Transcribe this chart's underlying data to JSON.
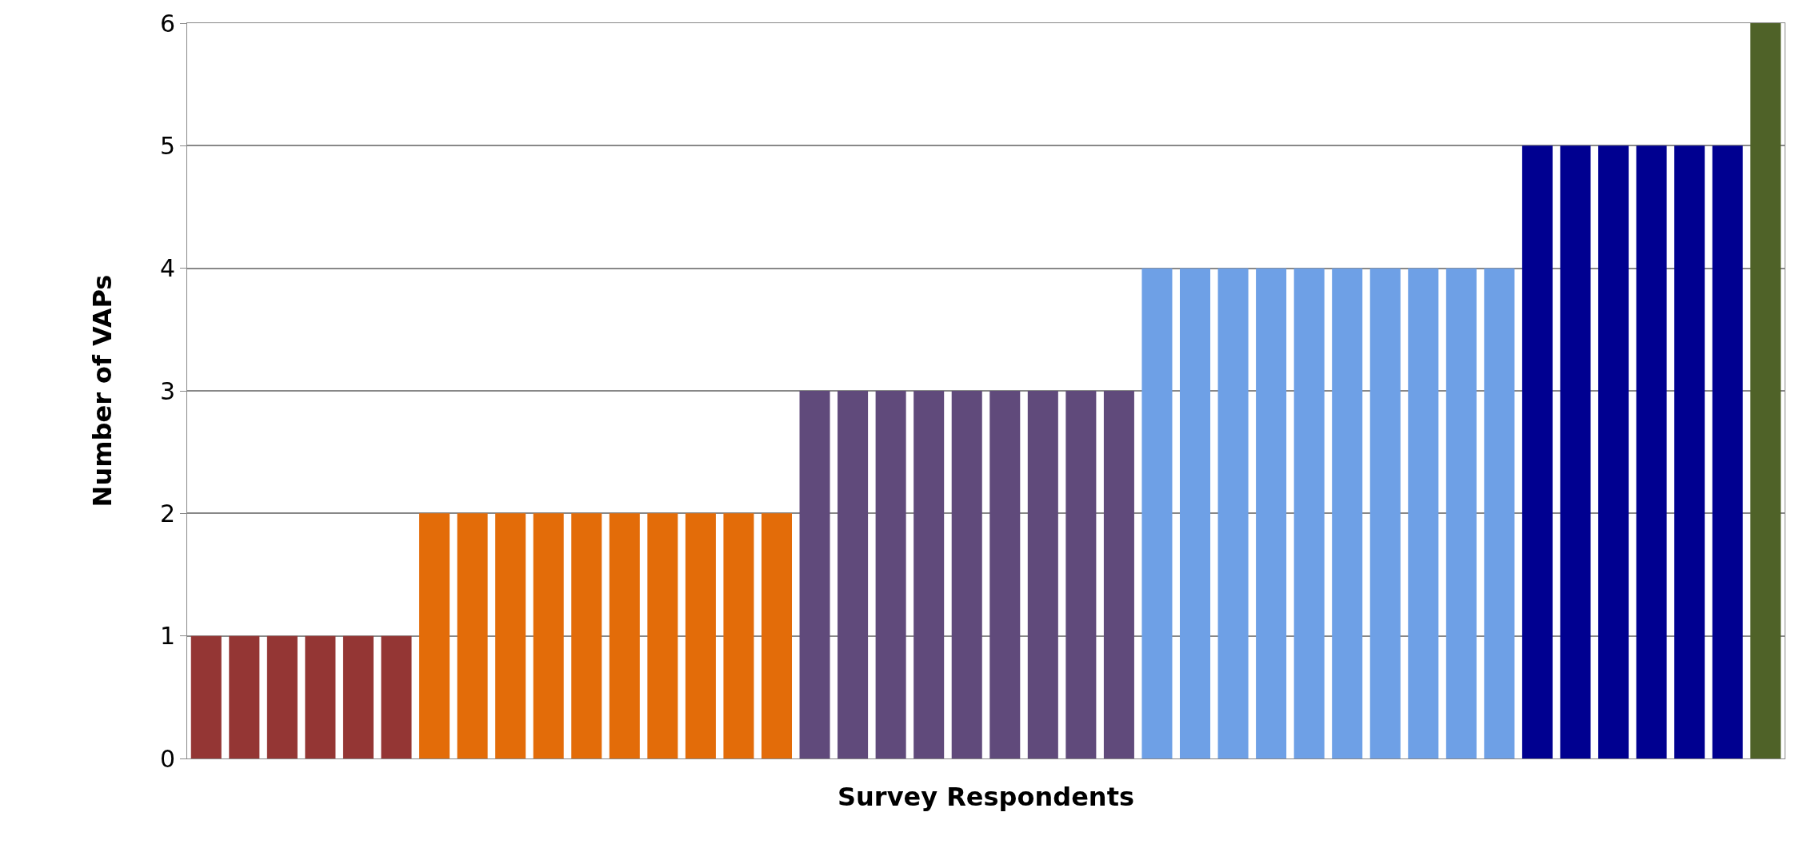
{
  "chart_data": {
    "type": "bar",
    "xlabel": "Survey Respondents",
    "ylabel": "Number of VAPs",
    "categories": [
      null,
      null,
      null,
      null,
      null,
      null,
      null,
      null,
      null,
      null,
      null,
      null,
      null,
      null,
      null,
      null,
      null,
      null,
      null,
      null,
      null,
      null,
      null,
      null,
      null,
      null,
      null,
      null,
      null,
      null,
      null,
      null,
      null,
      null,
      null,
      null,
      null,
      null,
      null,
      null,
      null,
      null
    ],
    "values": [
      1,
      1,
      1,
      1,
      1,
      1,
      2,
      2,
      2,
      2,
      2,
      2,
      2,
      2,
      2,
      2,
      3,
      3,
      3,
      3,
      3,
      3,
      3,
      3,
      3,
      4,
      4,
      4,
      4,
      4,
      4,
      4,
      4,
      4,
      4,
      5,
      5,
      5,
      5,
      5,
      5,
      6
    ],
    "colors": [
      "#943634",
      "#943634",
      "#943634",
      "#943634",
      "#943634",
      "#943634",
      "#e36c09",
      "#e36c09",
      "#e36c09",
      "#e36c09",
      "#e36c09",
      "#e36c09",
      "#e36c09",
      "#e36c09",
      "#e36c09",
      "#e36c09",
      "#604a7b",
      "#604a7b",
      "#604a7b",
      "#604a7b",
      "#604a7b",
      "#604a7b",
      "#604a7b",
      "#604a7b",
      "#604a7b",
      "#6ea0e6",
      "#6ea0e6",
      "#6ea0e6",
      "#6ea0e6",
      "#6ea0e6",
      "#6ea0e6",
      "#6ea0e6",
      "#6ea0e6",
      "#6ea0e6",
      "#6ea0e6",
      "#000090",
      "#000090",
      "#000090",
      "#000090",
      "#000090",
      "#000090",
      "#4f6228"
    ],
    "ylim": [
      0,
      6
    ],
    "yticks": [
      0,
      1,
      2,
      3,
      4,
      5,
      6
    ],
    "grid": "y"
  }
}
